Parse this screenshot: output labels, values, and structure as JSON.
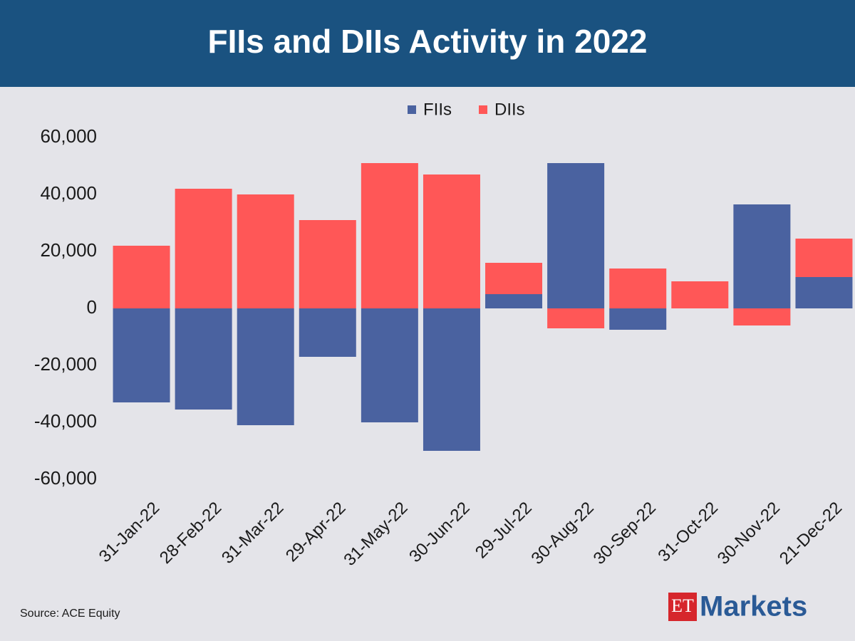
{
  "chart_data": {
    "type": "bar",
    "stacked": true,
    "title": "FIIs and DIIs Activity in 2022",
    "categories": [
      "31-Jan-22",
      "28-Feb-22",
      "31-Mar-22",
      "29-Apr-22",
      "31-May-22",
      "30-Jun-22",
      "29-Jul-22",
      "30-Aug-22",
      "30-Sep-22",
      "31-Oct-22",
      "30-Nov-22",
      "21-Dec-22"
    ],
    "series": [
      {
        "name": "FIIs",
        "color": "#4a62a0",
        "values": [
          -33000,
          -35500,
          -41000,
          -17000,
          -40000,
          -50000,
          5000,
          51000,
          -7500,
          0,
          36500,
          11000
        ]
      },
      {
        "name": "DIIs",
        "color": "#ff5757",
        "values": [
          22000,
          42000,
          40000,
          31000,
          51000,
          47000,
          11000,
          -7000,
          14000,
          9500,
          -6000,
          13500
        ]
      }
    ],
    "ylim": [
      -60000,
      60000
    ],
    "yticks": [
      {
        "value": -60000,
        "label": "-60,000"
      },
      {
        "value": -40000,
        "label": "-40,000"
      },
      {
        "value": -20000,
        "label": "-20,000"
      },
      0,
      {
        "value": 20000,
        "label": "20,000"
      },
      {
        "value": 40000,
        "label": "40,000"
      },
      {
        "value": 60000,
        "label": "60,000"
      }
    ],
    "grid": false,
    "legend": "top",
    "source": "Source: ACE Equity",
    "logo_badge": "ET",
    "logo_text": "Markets"
  }
}
